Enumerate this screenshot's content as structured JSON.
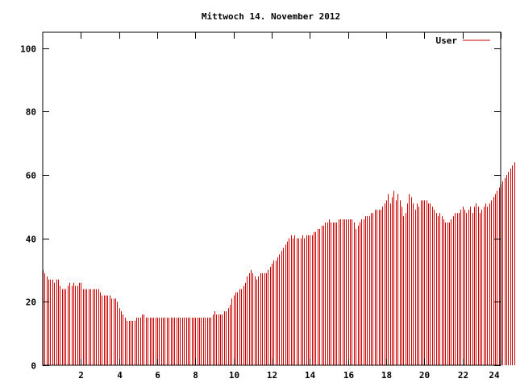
{
  "chart_data": {
    "type": "bar",
    "title": "Mittwoch 14. November 2012",
    "xlabel": "",
    "ylabel": "",
    "xlim": [
      0,
      24
    ],
    "ylim": [
      0,
      105
    ],
    "grid": false,
    "legend_placement": "top-right",
    "x_ticks": [
      "2",
      "4",
      "6",
      "8",
      "10",
      "12",
      "14",
      "16",
      "18",
      "20",
      "22",
      "24"
    ],
    "x_tick_values": [
      2,
      4,
      6,
      8,
      10,
      12,
      14,
      16,
      18,
      20,
      22,
      24
    ],
    "y_ticks": [
      "0",
      "20",
      "40",
      "60",
      "80",
      "100"
    ],
    "y_tick_values": [
      0,
      20,
      40,
      60,
      80,
      100
    ],
    "series": [
      {
        "name": "User",
        "color": "#cc0000",
        "x_start": 0,
        "x_step": 0.1,
        "values": [
          30,
          29,
          28,
          27,
          27,
          27,
          26,
          27,
          27,
          25,
          24,
          24,
          24,
          25,
          26,
          25,
          26,
          25,
          25,
          26,
          26,
          24,
          24,
          24,
          24,
          24,
          24,
          24,
          24,
          24,
          23,
          22,
          22,
          22,
          22,
          22,
          21,
          21,
          21,
          20,
          18,
          17,
          16,
          15,
          14,
          14,
          14,
          14,
          14,
          15,
          15,
          15,
          16,
          16,
          15,
          15,
          15,
          15,
          15,
          15,
          15,
          15,
          15,
          15,
          15,
          15,
          15,
          15,
          15,
          15,
          15,
          15,
          15,
          15,
          15,
          15,
          15,
          15,
          15,
          15,
          15,
          15,
          15,
          15,
          15,
          15,
          15,
          15,
          15,
          16,
          17,
          16,
          16,
          16,
          16,
          17,
          17,
          18,
          19,
          21,
          22,
          23,
          23,
          24,
          24,
          25,
          26,
          28,
          29,
          30,
          29,
          28,
          27,
          28,
          29,
          29,
          29,
          29,
          30,
          31,
          32,
          33,
          33,
          34,
          35,
          36,
          37,
          38,
          39,
          40,
          41,
          40,
          41,
          40,
          40,
          40,
          41,
          40,
          41,
          41,
          41,
          41,
          42,
          42,
          43,
          43,
          44,
          44,
          45,
          45,
          46,
          45,
          45,
          45,
          45,
          46,
          46,
          46,
          46,
          46,
          46,
          46,
          46,
          45,
          43,
          44,
          45,
          46,
          46,
          47,
          47,
          47,
          48,
          48,
          49,
          49,
          49,
          49,
          50,
          51,
          52,
          54,
          51,
          53,
          55,
          52,
          54,
          52,
          50,
          47,
          48,
          51,
          54,
          53,
          51,
          49,
          51,
          50,
          52,
          52,
          52,
          52,
          51,
          51,
          50,
          49,
          48,
          47,
          48,
          47,
          46,
          45,
          45,
          45,
          46,
          47,
          48,
          48,
          48,
          49,
          50,
          49,
          48,
          49,
          50,
          48,
          50,
          51,
          50,
          48,
          49,
          50,
          51,
          50,
          51,
          52,
          53,
          54,
          55,
          56,
          57,
          58,
          59,
          60,
          61,
          62,
          63,
          64,
          63,
          62,
          64,
          63,
          62,
          62,
          61,
          61,
          60,
          61,
          59,
          58,
          57,
          56,
          57,
          56,
          55,
          54,
          53,
          52,
          51,
          50,
          48,
          47,
          47,
          47,
          45,
          43,
          42,
          41,
          40,
          40,
          39,
          38,
          37,
          37,
          36,
          36,
          35,
          36,
          37,
          37,
          36,
          37,
          36,
          37,
          37,
          37,
          37,
          37,
          36,
          36
        ]
      }
    ]
  }
}
